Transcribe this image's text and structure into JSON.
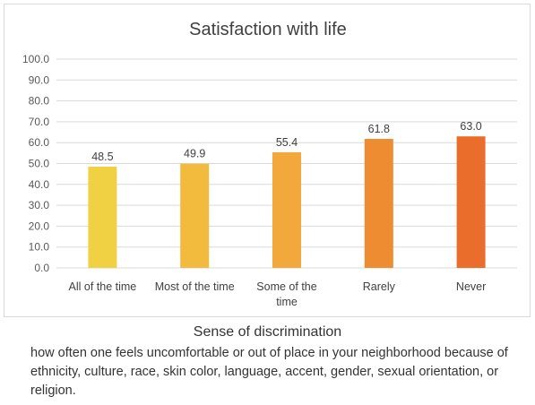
{
  "chart_data": {
    "type": "bar",
    "title": "Satisfaction with life",
    "categories": [
      "All of the time",
      "Most of the time",
      "Some of the time",
      "Rarely",
      "Never"
    ],
    "category_lines": [
      [
        "All of the time"
      ],
      [
        "Most of the time"
      ],
      [
        "Some of the",
        "time"
      ],
      [
        "Rarely"
      ],
      [
        "Never"
      ]
    ],
    "values": [
      48.5,
      49.9,
      55.4,
      61.8,
      63.0
    ],
    "value_labels": [
      "48.5",
      "49.9",
      "55.4",
      "61.8",
      "63.0"
    ],
    "bar_colors": [
      "#f0d143",
      "#f2bb3e",
      "#f2a83a",
      "#ee8c31",
      "#ea6d2c"
    ],
    "ylim": [
      0,
      100
    ],
    "yticks": [
      "0.0",
      "10.0",
      "20.0",
      "30.0",
      "40.0",
      "50.0",
      "60.0",
      "70.0",
      "80.0",
      "90.0",
      "100.0"
    ],
    "grid": true,
    "xlabel": "Sense of discrimination",
    "ylabel": ""
  },
  "note": "how often one feels uncomfortable or out of place in your neighborhood because of ethnicity, culture, race, skin color, language, accent, gender, sexual orientation, or religion."
}
